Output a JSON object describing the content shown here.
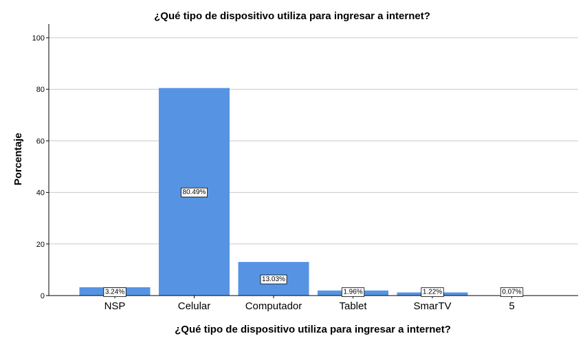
{
  "chart_data": {
    "type": "bar",
    "title": "¿Qué tipo de dispositivo utiliza para ingresar a internet?",
    "xlabel": "¿Qué tipo de dispositivo utiliza para ingresar a internet?",
    "ylabel": "Porcentaje",
    "categories": [
      "NSP",
      "Celular",
      "Computador",
      "Tablet",
      "SmarTV",
      "5"
    ],
    "values": [
      3.24,
      80.49,
      13.03,
      1.96,
      1.22,
      0.07
    ],
    "data_labels": [
      "3.24%",
      "80.49%",
      "13.03%",
      "1.96%",
      "1.22%",
      "0.07%"
    ],
    "yticks": [
      0,
      20,
      40,
      60,
      80,
      100
    ],
    "ylim": [
      0,
      100
    ],
    "grid": true,
    "bar_color": "#5694e3",
    "grid_color": "#c8c8c8"
  }
}
